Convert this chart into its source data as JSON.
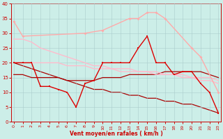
{
  "x": [
    0,
    1,
    2,
    3,
    4,
    5,
    6,
    7,
    8,
    9,
    10,
    11,
    12,
    13,
    14,
    15,
    16,
    17,
    18,
    19,
    20,
    21,
    22,
    23
  ],
  "light_pink_x": [
    0,
    1,
    8,
    10,
    13,
    14,
    15,
    16,
    17,
    20,
    21,
    23
  ],
  "light_pink_y": [
    34,
    29,
    30,
    31,
    35,
    35,
    37,
    37,
    35,
    25,
    22,
    10
  ],
  "pink_upper_y": [
    28,
    28,
    27,
    25,
    24,
    23,
    22,
    21,
    20,
    19,
    19,
    18,
    18,
    18,
    17,
    17,
    17,
    16,
    16,
    16,
    15,
    15,
    15,
    14
  ],
  "pink_lower_y": [
    20,
    20,
    20,
    20,
    20,
    20,
    19,
    19,
    19,
    18,
    18,
    18,
    17,
    17,
    17,
    17,
    16,
    16,
    16,
    15,
    15,
    14,
    14,
    13
  ],
  "red_spiky_y": [
    20,
    20,
    20,
    12,
    12,
    11,
    10,
    5,
    13,
    14,
    20,
    20,
    20,
    20,
    25,
    29,
    20,
    20,
    16,
    17,
    17,
    13,
    10,
    3
  ],
  "dark_flat_y": [
    16,
    16,
    15,
    15,
    15,
    15,
    14,
    14,
    14,
    14,
    15,
    15,
    15,
    16,
    16,
    16,
    16,
    17,
    17,
    17,
    17,
    17,
    16,
    15
  ],
  "decline_y": [
    20,
    19,
    18,
    17,
    16,
    15,
    14,
    13,
    12,
    11,
    11,
    10,
    10,
    9,
    9,
    8,
    8,
    7,
    7,
    6,
    6,
    5,
    4,
    3
  ],
  "xlim": [
    -0.3,
    23.3
  ],
  "ylim": [
    0,
    40
  ],
  "yticks": [
    0,
    5,
    10,
    15,
    20,
    25,
    30,
    35,
    40
  ],
  "xticks": [
    0,
    1,
    2,
    3,
    4,
    5,
    6,
    7,
    8,
    9,
    10,
    11,
    12,
    13,
    14,
    15,
    16,
    17,
    18,
    19,
    20,
    21,
    22,
    23
  ],
  "xlabel": "Vent moyen/en rafales ( km/h )",
  "background_color": "#cceee8",
  "grid_color": "#aacccc",
  "xlabel_color": "#cc0000",
  "tick_color": "#cc0000",
  "color_light_pink": "#ffaaaa",
  "color_pink_band": "#ffbbcc",
  "color_red": "#dd0000",
  "color_dark_red": "#aa0000"
}
